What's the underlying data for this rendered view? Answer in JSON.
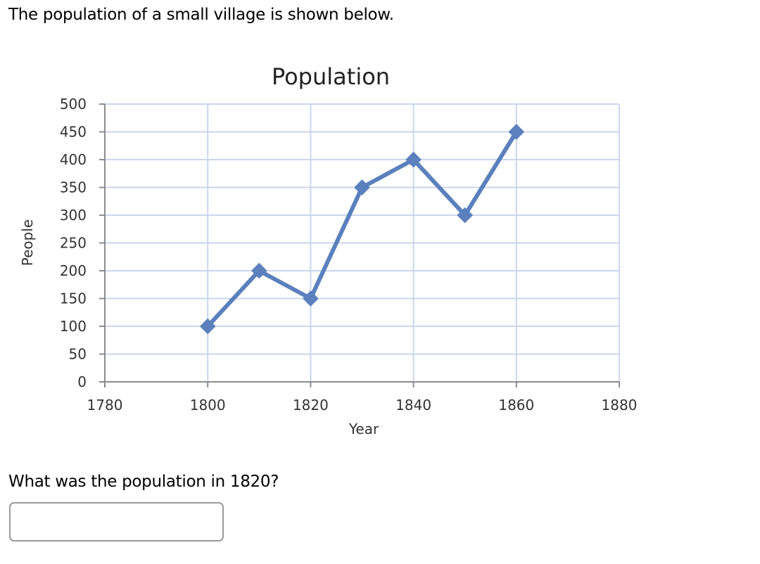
{
  "prompt": "The population of a small village is shown below.",
  "question": "What was the population in 1820?",
  "answer_input": {
    "value": "",
    "placeholder": ""
  },
  "colors": {
    "series": "#5b80bd",
    "grid": "#c9d6ee",
    "axis": "#8c8c8c",
    "text": "#333333"
  },
  "chart_data": {
    "type": "line",
    "title": "Population",
    "xlabel": "Year",
    "ylabel": "People",
    "x": [
      1800,
      1810,
      1820,
      1830,
      1840,
      1850,
      1860
    ],
    "series": [
      {
        "name": "Population",
        "values": [
          100,
          200,
          150,
          350,
          400,
          300,
          450
        ]
      }
    ],
    "xlim": [
      1780,
      1880
    ],
    "ylim": [
      0,
      500
    ],
    "xticks": [
      1780,
      1800,
      1820,
      1840,
      1860,
      1880
    ],
    "yticks": [
      0,
      50,
      100,
      150,
      200,
      250,
      300,
      350,
      400,
      450,
      500
    ],
    "marker": "diamond",
    "grid": true,
    "legend": false
  }
}
